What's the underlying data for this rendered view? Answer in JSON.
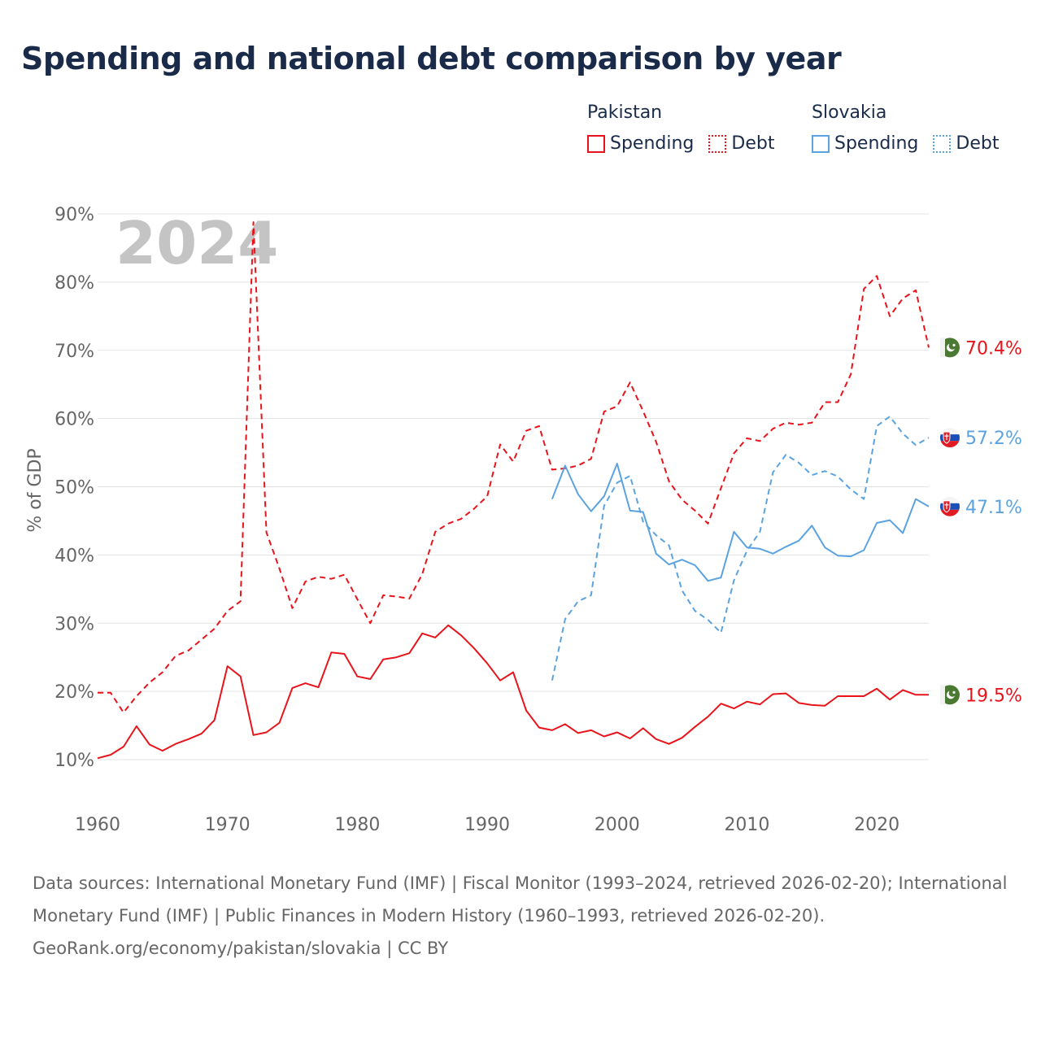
{
  "page": {
    "title": "Spending and national debt comparison by year"
  },
  "legend": {
    "groups": [
      {
        "country": "Pakistan",
        "items": [
          {
            "label": "Spending",
            "style": "solid",
            "color": "#e8141b"
          },
          {
            "label": "Debt",
            "style": "dotted",
            "color": "#e8141b"
          }
        ]
      },
      {
        "country": "Slovakia",
        "items": [
          {
            "label": "Spending",
            "style": "solid",
            "color": "#5ba3e0"
          },
          {
            "label": "Debt",
            "style": "dotted",
            "color": "#5ba3e0"
          }
        ]
      }
    ]
  },
  "footer": {
    "sources": "Data sources: International Monetary Fund (IMF) | Fiscal Monitor (1993–2024, retrieved 2026-02-20); International Monetary Fund (IMF) | Public Finances in Modern History (1960–1993, retrieved 2026-02-20).",
    "credit": "GeoRank.org/economy/pakistan/slovakia | CC BY"
  },
  "chart_data": {
    "type": "line",
    "year_watermark": "2024",
    "ylabel": "% of GDP",
    "xlabel": "",
    "xlim": [
      1960,
      2024
    ],
    "ylim": [
      0,
      90
    ],
    "y_ticks": [
      10,
      20,
      30,
      40,
      50,
      60,
      70,
      80,
      90
    ],
    "y_tick_labels": [
      "10%",
      "20%",
      "30%",
      "40%",
      "50%",
      "60%",
      "70%",
      "80%",
      "90%"
    ],
    "x_ticks": [
      1960,
      1970,
      1980,
      1990,
      2000,
      2010,
      2020
    ],
    "x_tick_labels": [
      "1960",
      "1970",
      "1980",
      "1990",
      "2000",
      "2010",
      "2020"
    ],
    "grid": true,
    "series": [
      {
        "name": "Pakistan Spending",
        "country": "Pakistan",
        "kind": "spending",
        "color": "#e8141b",
        "dash": "solid",
        "flag": "pakistan",
        "end_label": "19.5%",
        "x": [
          1960,
          1961,
          1962,
          1963,
          1964,
          1965,
          1966,
          1967,
          1968,
          1969,
          1970,
          1971,
          1972,
          1973,
          1974,
          1975,
          1976,
          1977,
          1978,
          1979,
          1980,
          1981,
          1982,
          1983,
          1984,
          1985,
          1986,
          1987,
          1988,
          1989,
          1990,
          1991,
          1992,
          1993,
          1994,
          1995,
          1996,
          1997,
          1998,
          1999,
          2000,
          2001,
          2002,
          2003,
          2004,
          2005,
          2006,
          2007,
          2008,
          2009,
          2010,
          2011,
          2012,
          2013,
          2014,
          2015,
          2016,
          2017,
          2018,
          2019,
          2020,
          2021,
          2022,
          2023,
          2024
        ],
        "values": [
          10.2,
          10.7,
          11.9,
          14.9,
          12.2,
          11.3,
          12.3,
          13.0,
          13.8,
          15.8,
          23.7,
          22.2,
          13.6,
          14.0,
          15.4,
          20.5,
          21.2,
          20.6,
          25.7,
          25.5,
          22.2,
          21.8,
          24.7,
          25.0,
          25.6,
          28.5,
          27.9,
          29.7,
          28.2,
          26.3,
          24.1,
          21.6,
          22.8,
          17.2,
          14.7,
          14.3,
          15.2,
          13.9,
          14.3,
          13.4,
          14.0,
          13.1,
          14.6,
          13.0,
          12.3,
          13.2,
          14.8,
          16.3,
          18.2,
          17.5,
          18.5,
          18.1,
          19.6,
          19.7,
          18.3,
          18.0,
          17.9,
          19.3,
          19.3,
          19.3,
          20.4,
          18.8,
          20.2,
          19.5,
          19.5
        ]
      },
      {
        "name": "Pakistan Debt",
        "country": "Pakistan",
        "kind": "debt",
        "color": "#e8141b",
        "dash": "dashed",
        "flag": "pakistan",
        "end_label": "70.4%",
        "x": [
          1960,
          1961,
          1962,
          1963,
          1964,
          1965,
          1966,
          1967,
          1968,
          1969,
          1970,
          1971,
          1972,
          1973,
          1974,
          1975,
          1976,
          1977,
          1978,
          1979,
          1980,
          1981,
          1982,
          1983,
          1984,
          1985,
          1986,
          1987,
          1988,
          1989,
          1990,
          1991,
          1992,
          1993,
          1994,
          1995,
          1996,
          1997,
          1998,
          1999,
          2000,
          2001,
          2002,
          2003,
          2004,
          2005,
          2006,
          2007,
          2008,
          2009,
          2010,
          2011,
          2012,
          2013,
          2014,
          2015,
          2016,
          2017,
          2018,
          2019,
          2020,
          2021,
          2022,
          2023,
          2024
        ],
        "values": [
          19.8,
          19.8,
          16.9,
          19.3,
          21.3,
          22.8,
          25.2,
          26.0,
          27.6,
          29.2,
          31.8,
          33.2,
          88.8,
          43.3,
          38.0,
          32.2,
          36.1,
          36.8,
          36.5,
          37.1,
          33.5,
          30.0,
          34.1,
          33.9,
          33.6,
          37.2,
          43.4,
          44.6,
          45.3,
          46.8,
          48.6,
          56.2,
          53.7,
          58.2,
          58.9,
          52.5,
          52.7,
          53.1,
          54.1,
          61.0,
          61.8,
          65.3,
          61.1,
          56.6,
          50.8,
          48.1,
          46.5,
          44.6,
          49.8,
          54.9,
          57.1,
          56.7,
          58.5,
          59.4,
          59.1,
          59.4,
          62.4,
          62.4,
          66.5,
          79.0,
          80.9,
          75.0,
          77.6,
          78.8,
          70.4
        ]
      },
      {
        "name": "Slovakia Spending",
        "country": "Slovakia",
        "kind": "spending",
        "color": "#5ba3e0",
        "dash": "solid",
        "flag": "slovakia",
        "end_label": "47.1%",
        "x": [
          1995,
          1996,
          1997,
          1998,
          1999,
          2000,
          2001,
          2002,
          2003,
          2004,
          2005,
          2006,
          2007,
          2008,
          2009,
          2010,
          2011,
          2012,
          2013,
          2014,
          2015,
          2016,
          2017,
          2018,
          2019,
          2020,
          2021,
          2022,
          2023,
          2024
        ],
        "values": [
          48.2,
          53.1,
          48.9,
          46.4,
          48.6,
          53.4,
          46.5,
          46.3,
          40.2,
          38.6,
          39.3,
          38.5,
          36.2,
          36.7,
          43.4,
          41.1,
          40.9,
          40.2,
          41.2,
          42.1,
          44.3,
          41.1,
          39.9,
          39.8,
          40.7,
          44.7,
          45.1,
          43.2,
          48.2,
          47.1
        ]
      },
      {
        "name": "Slovakia Debt",
        "country": "Slovakia",
        "kind": "debt",
        "color": "#5ba3e0",
        "dash": "dashed",
        "flag": "slovakia",
        "end_label": "57.2%",
        "x": [
          1995,
          1996,
          1997,
          1998,
          1999,
          2000,
          2001,
          2002,
          2003,
          2004,
          2005,
          2006,
          2007,
          2008,
          2009,
          2010,
          2011,
          2012,
          2013,
          2014,
          2015,
          2016,
          2017,
          2018,
          2019,
          2020,
          2021,
          2022,
          2023,
          2024
        ],
        "values": [
          21.6,
          30.6,
          33.2,
          34.1,
          47.2,
          50.6,
          51.6,
          44.9,
          42.9,
          41.4,
          34.8,
          31.8,
          30.5,
          28.6,
          36.3,
          40.6,
          43.4,
          52.1,
          54.7,
          53.5,
          51.7,
          52.3,
          51.5,
          49.6,
          48.2,
          58.9,
          60.3,
          57.8,
          56.1,
          57.2
        ]
      }
    ]
  }
}
